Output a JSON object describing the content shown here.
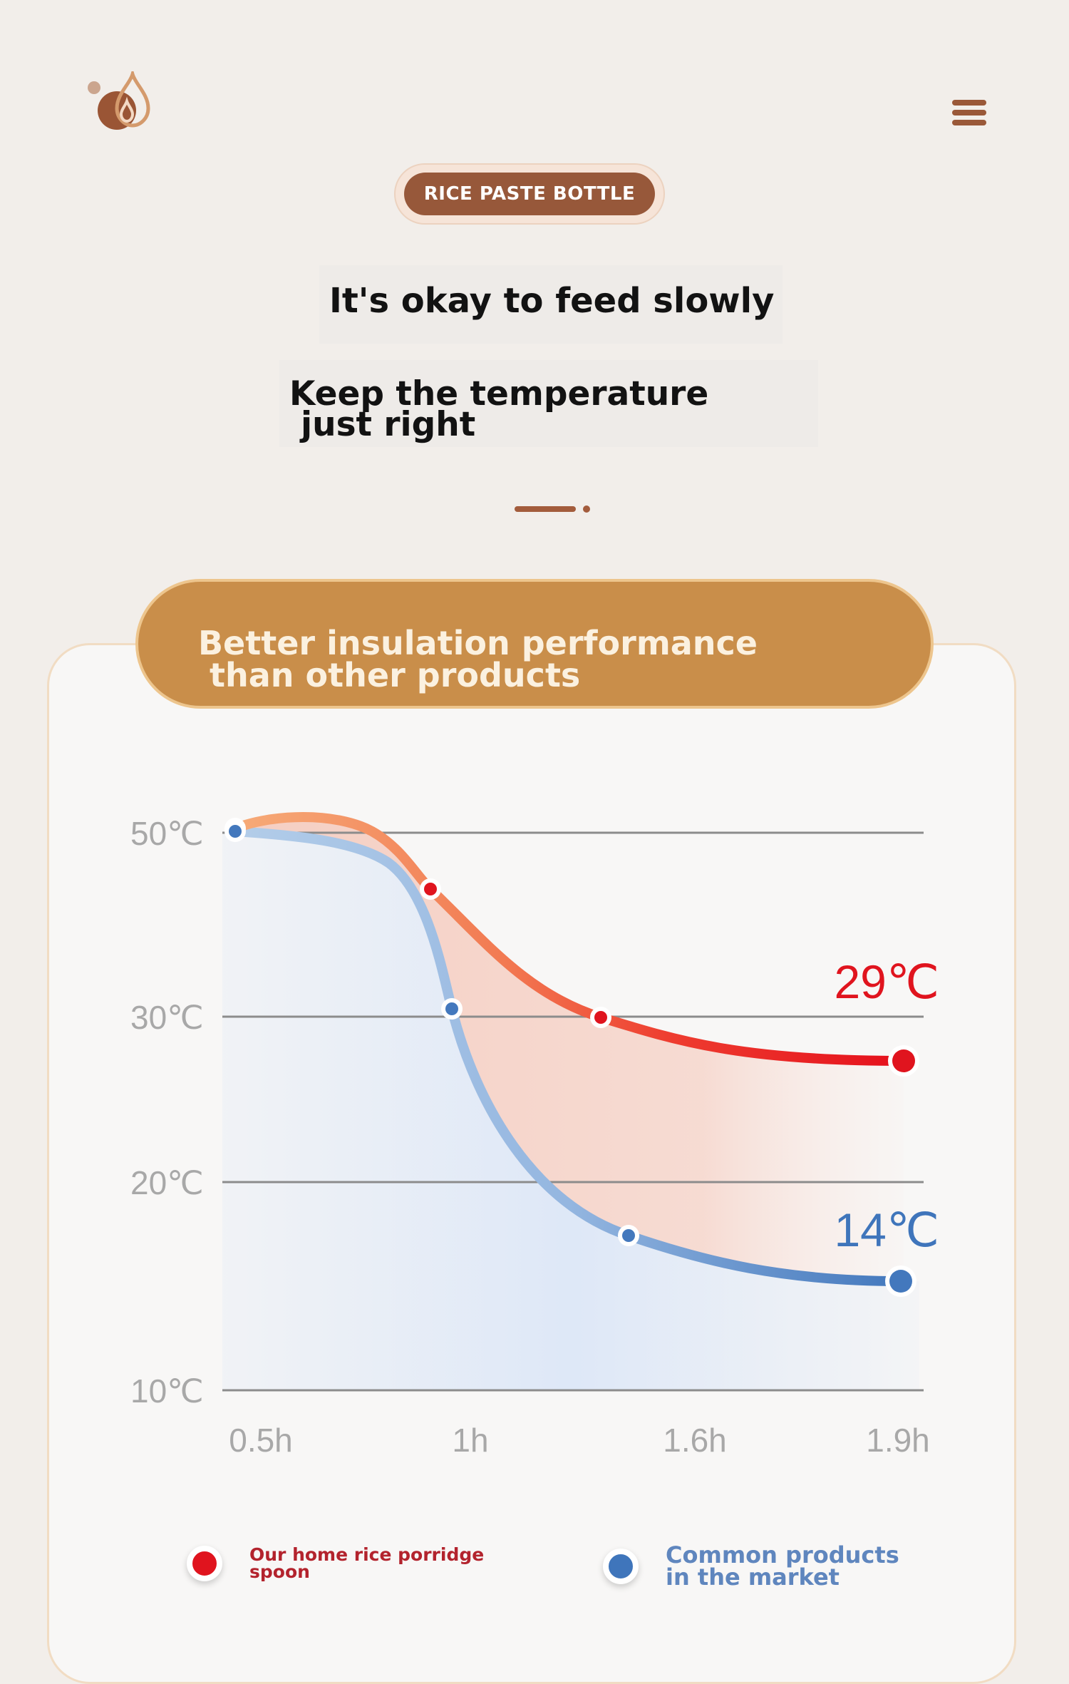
{
  "header": {
    "logo_icon": "water-drop-logo-icon",
    "menu_icon": "hamburger-menu-icon",
    "badge_label": "RICE PASTE BOTTLE",
    "headline": "It's okay to feed slowly",
    "subheadline_line1": "Keep the temperature",
    "subheadline_line2": "just right"
  },
  "colors": {
    "brand_brown": "#97583a",
    "banner_gold": "#c98e4a",
    "our_product": "#e0141e",
    "market_product": "#3f75bb"
  },
  "banner": {
    "line1": "Better insulation performance",
    "line2": "than other products"
  },
  "chart_data": {
    "type": "line",
    "title": "",
    "xlabel": "",
    "ylabel": "",
    "x_ticks": [
      "0.5h",
      "1h",
      "1.6h",
      "1.9h"
    ],
    "y_ticks": [
      "50℃",
      "30℃",
      "20℃",
      "10℃"
    ],
    "grid": true,
    "legend_position": "bottom",
    "series": [
      {
        "name": "Our home rice porridge spoon",
        "color": "#e0141e",
        "points": [
          {
            "x": "0.5h",
            "y": 50
          },
          {
            "x": "~0.95h",
            "y": 41
          },
          {
            "x": "~1.5h",
            "y": 30
          },
          {
            "x": "1.9h",
            "y": 29
          }
        ],
        "end_label": "29℃"
      },
      {
        "name": "Common products in the market",
        "color": "#3f75bb",
        "points": [
          {
            "x": "0.5h",
            "y": 50
          },
          {
            "x": "1h",
            "y": 30.5
          },
          {
            "x": "~1.55h",
            "y": 17
          },
          {
            "x": "1.9h",
            "y": 14
          }
        ],
        "end_label": "14℃"
      }
    ]
  },
  "legend": {
    "item1": "Our home rice porridge\nspoon",
    "item2": "Common products\nin the market"
  }
}
